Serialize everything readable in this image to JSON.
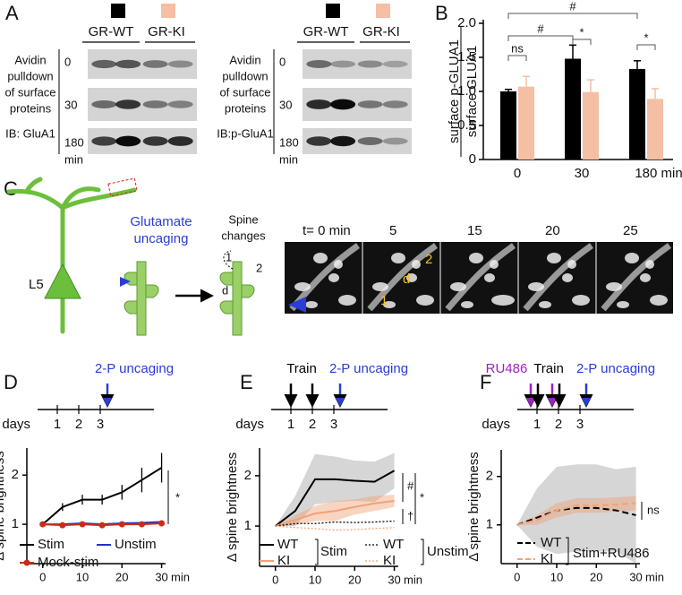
{
  "panels": {
    "a": {
      "label": "A",
      "blots": [
        {
          "caption": [
            "Avidin",
            "pulldown",
            "of surface",
            "proteins"
          ],
          "antibody": "IB: GluA1",
          "times": [
            "0",
            "30",
            "180"
          ],
          "unit": "min"
        },
        {
          "caption": [
            "Avidin",
            "pulldown",
            "of surface",
            "proteins"
          ],
          "antibody": "IB:p-GluA1",
          "times": [
            "0",
            "30",
            "180"
          ],
          "unit": "min"
        }
      ]
    },
    "b": {
      "label": "B"
    },
    "c": {
      "label": "C",
      "cell": "L5",
      "stimulus": [
        "Glutamate",
        "uncaging"
      ],
      "outcome": [
        "Spine",
        "changes"
      ],
      "spine_numbers": [
        "1",
        "2"
      ],
      "distance": "d",
      "frames": [
        "t= 0 min",
        "5",
        "15",
        "20",
        "25"
      ],
      "frame_marks": [
        "2",
        "d",
        "1"
      ]
    },
    "d": {
      "label": "D",
      "timeline": {
        "days_label": "days",
        "days": [
          "1",
          "2",
          "3"
        ],
        "uncaging": "2-P uncaging"
      }
    },
    "e": {
      "label": "E",
      "timeline": {
        "days_label": "days",
        "days": [
          "1",
          "2",
          "3"
        ],
        "train": "Train",
        "uncaging": "2-P uncaging"
      }
    },
    "f": {
      "label": "F",
      "timeline": {
        "days_label": "days",
        "days": [
          "1",
          "2",
          "3"
        ],
        "drug": "RU486",
        "train": "Train",
        "uncaging": "2-P uncaging"
      }
    }
  },
  "chart_data": [
    {
      "type": "bar",
      "ylabel": [
        "surface p-GLUA1",
        "surface GLUA1"
      ],
      "categories": [
        "0",
        "30",
        "180 min"
      ],
      "series": [
        {
          "name": "GR-WT",
          "color": "#000000",
          "values": [
            1.0,
            1.48,
            1.33
          ],
          "errors": [
            0.03,
            0.2,
            0.12
          ]
        },
        {
          "name": "GR-KI",
          "color": "#f4bfa3",
          "values": [
            1.07,
            0.99,
            0.89
          ],
          "errors": [
            0.15,
            0.18,
            0.15
          ]
        }
      ],
      "ylim": [
        0,
        2.0
      ],
      "yticks": [
        0,
        0.5,
        {
          "value": 1.0,
          "label": "1.0"
        },
        1.5,
        {
          "value": 2.0,
          "label": "2.0"
        }
      ],
      "annotations": [
        "ns",
        "#",
        "#",
        "*",
        "*"
      ]
    },
    {
      "type": "line",
      "ylabel": "Δ spine brightness",
      "xunit": "min",
      "x": [
        0,
        5,
        10,
        15,
        20,
        25,
        30
      ],
      "xlim": [
        -4,
        31
      ],
      "xticks": [
        0,
        10,
        20,
        30
      ],
      "ylim": [
        0.2,
        2.55
      ],
      "yticks": [
        1,
        2
      ],
      "series": [
        {
          "name": "Stim",
          "color": "#000000",
          "values": [
            1,
            1.35,
            1.5,
            1.5,
            1.65,
            1.9,
            2.15
          ],
          "errors": [
            0,
            0.08,
            0.1,
            0.1,
            0.15,
            0.25,
            0.3
          ]
        },
        {
          "name": "Unstim",
          "color": "#2233cc",
          "values": [
            1,
            1.0,
            1.02,
            1.0,
            1.02,
            1.03,
            1.05
          ]
        },
        {
          "name": "Mock-stim",
          "color": "#cc2a1a",
          "values": [
            1,
            0.98,
            1.0,
            0.98,
            1.0,
            1.0,
            1.02
          ],
          "markers": true
        }
      ],
      "annotations": [
        "*"
      ]
    },
    {
      "type": "line",
      "ylabel": "Δ spine brightness",
      "xunit": "min",
      "x": [
        0,
        5,
        10,
        15,
        20,
        25,
        30
      ],
      "xlim": [
        -4,
        31
      ],
      "xticks": [
        0,
        10,
        20,
        30
      ],
      "ylim": [
        0.2,
        2.55
      ],
      "yticks": [
        1,
        2
      ],
      "series": [
        {
          "name": "WT",
          "color": "#000000",
          "values": [
            1,
            1.3,
            1.93,
            1.93,
            1.9,
            1.88,
            2.1
          ],
          "errors": [
            0,
            0.3,
            0.5,
            0.45,
            0.4,
            0.4,
            0.35
          ],
          "band": true
        },
        {
          "name": "KI",
          "color": "#f0a276",
          "values": [
            1,
            1.12,
            1.25,
            1.3,
            1.38,
            1.45,
            1.5
          ],
          "errors": [
            0,
            0.1,
            0.15,
            0.2,
            0.15,
            0.15,
            0.12
          ],
          "band": true
        },
        {
          "name": "WT",
          "color": "#000000",
          "values": [
            1,
            1.05,
            1.05,
            1.08,
            1.07,
            1.08,
            1.1
          ],
          "dash": true
        },
        {
          "name": "KI",
          "color": "#f0a276",
          "values": [
            1,
            0.97,
            0.95,
            0.92,
            0.93,
            0.95,
            0.97
          ],
          "dash": true
        }
      ],
      "legend_groups": [
        "Stim",
        "Unstim"
      ],
      "annotations": [
        "#",
        "*",
        "†"
      ]
    },
    {
      "type": "line",
      "ylabel": "Δ spine brightness",
      "xunit": "min",
      "x": [
        0,
        5,
        10,
        15,
        20,
        25,
        30
      ],
      "xlim": [
        -4,
        31
      ],
      "xticks": [
        0,
        10,
        20,
        30
      ],
      "ylim": [
        0.2,
        2.55
      ],
      "yticks": [
        1,
        2
      ],
      "series": [
        {
          "name": "WT",
          "color": "#000000",
          "values": [
            1,
            1.15,
            1.3,
            1.35,
            1.35,
            1.3,
            1.2
          ],
          "errors": [
            0,
            0.6,
            0.9,
            0.9,
            0.9,
            0.85,
            1.0
          ],
          "band": true,
          "dash": true
        },
        {
          "name": "KI",
          "color": "#f0a276",
          "values": [
            1,
            1.1,
            1.3,
            1.4,
            1.4,
            1.42,
            1.45
          ],
          "errors": [
            0,
            0.1,
            0.15,
            0.15,
            0.15,
            0.15,
            0.15
          ],
          "band": true,
          "dash": true
        }
      ],
      "legend_groups": [
        "Stim+RU486"
      ],
      "annotations": [
        "ns"
      ]
    }
  ]
}
